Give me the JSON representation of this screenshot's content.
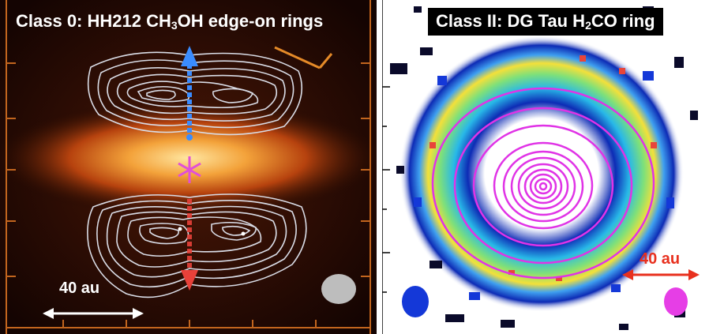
{
  "left_panel": {
    "title": {
      "prefix": "Class 0: HH212 CH",
      "sub1": "3",
      "mid": "OH edge-on rings"
    },
    "scale_label": "40 au",
    "colors": {
      "blue_lobe": "#3a8cff",
      "red_lobe": "#e8413a",
      "star": "#e04fd8",
      "contours": "#d9dce6"
    }
  },
  "right_panel": {
    "title": {
      "prefix": "Class II: DG Tau H",
      "sub1": "2",
      "mid": "CO ring"
    },
    "scale_label": "40 au",
    "colors": {
      "contours": "#e033e6",
      "scale_arrow": "#e8301e",
      "beam_left": "#1438d8",
      "beam_right": "#e63ee6"
    }
  }
}
